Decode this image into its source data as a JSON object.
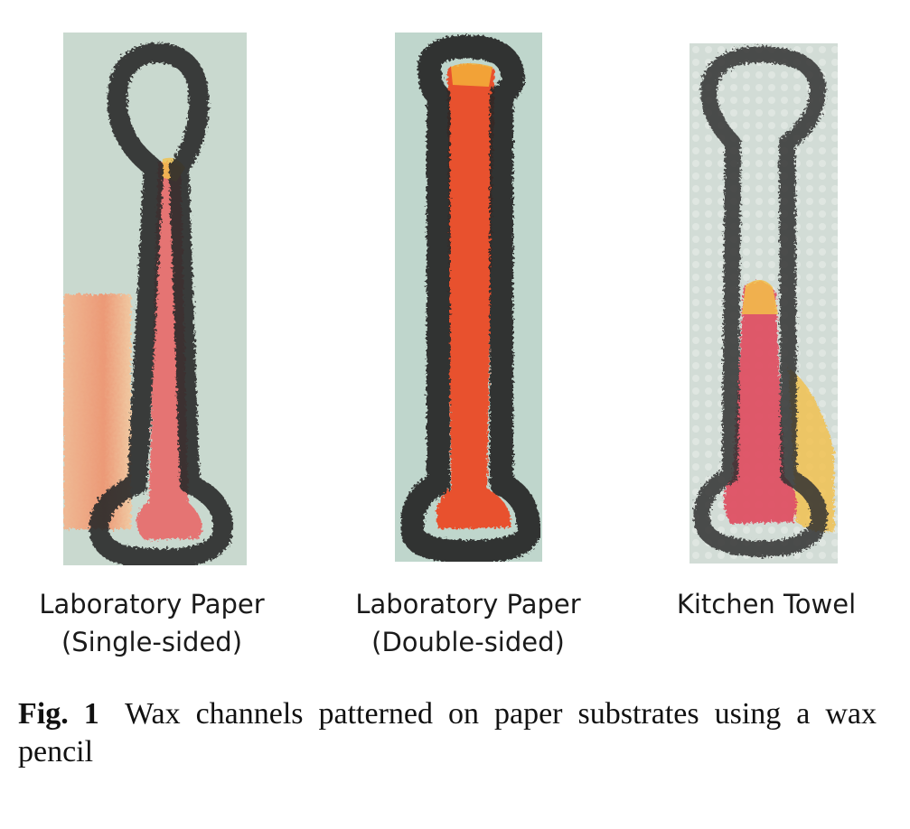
{
  "figure": {
    "panels": [
      {
        "substrate": "laboratory-paper-single-sided",
        "label_lines": [
          "Laboratory Paper",
          "(Single-sided)"
        ],
        "background_color": "#c9d9cf",
        "fill_color": "#e96a6a",
        "leak_color": "#f39a6a"
      },
      {
        "substrate": "laboratory-paper-double-sided",
        "label_lines": [
          "Laboratory Paper",
          "(Double-sided)"
        ],
        "background_color": "#bfd6cc",
        "fill_color": "#e8512f"
      },
      {
        "substrate": "kitchen-towel",
        "label_lines": [
          "Kitchen Towel",
          ""
        ],
        "background_color": "#d2dcd6",
        "fill_color": "#e04e60",
        "leak_color": "#f3c04a"
      }
    ],
    "caption": {
      "label": "Fig. 1",
      "text": "Wax channels patterned on paper substrates using a wax pencil"
    }
  }
}
